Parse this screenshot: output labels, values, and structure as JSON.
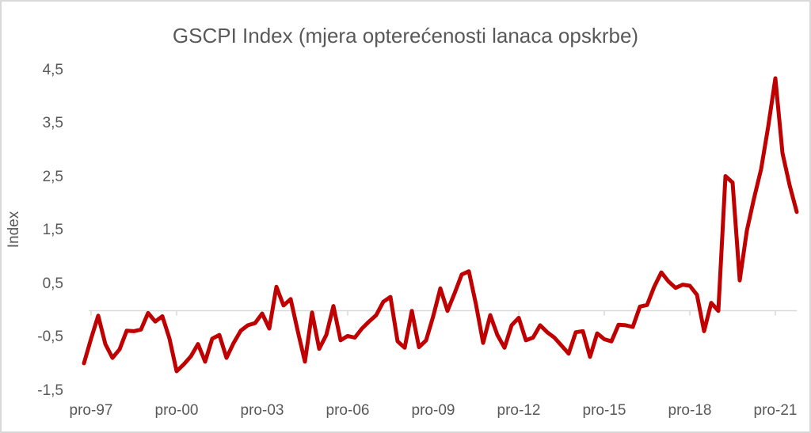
{
  "title": "GSCPI Index (mjera opterećenosti lanaca opskrbe)",
  "y_axis": {
    "title": "Index",
    "tick_labels": [
      "4,5",
      "3,5",
      "2,5",
      "1,5",
      "0,5",
      "-0,5",
      "-1,5"
    ],
    "tick_values": [
      4.5,
      3.5,
      2.5,
      1.5,
      0.5,
      -0.5,
      -1.5
    ],
    "min": -1.5,
    "max": 4.5
  },
  "x_axis": {
    "tick_labels": [
      "pro-97",
      "pro-00",
      "pro-03",
      "pro-06",
      "pro-09",
      "pro-12",
      "pro-15",
      "pro-18",
      "pro-21"
    ],
    "tick_indices": [
      1,
      13,
      25,
      37,
      49,
      61,
      73,
      85,
      97
    ]
  },
  "chart_data": {
    "type": "line",
    "title": "GSCPI Index (mjera opterećenosti lanaca opskrbe)",
    "ylabel": "Index",
    "series_name": "GSCPI Index",
    "frequency": "quarterly",
    "x_start": "1997-Q3",
    "x_end": "2022-Q3",
    "x_tick_labels": [
      "pro-97",
      "pro-00",
      "pro-03",
      "pro-06",
      "pro-09",
      "pro-12",
      "pro-15",
      "pro-18",
      "pro-21"
    ],
    "x_tick_indices": [
      1,
      13,
      25,
      37,
      49,
      61,
      73,
      85,
      97
    ],
    "values": [
      -0.98,
      -0.52,
      -0.09,
      -0.62,
      -0.88,
      -0.72,
      -0.37,
      -0.38,
      -0.35,
      -0.04,
      -0.2,
      -0.1,
      -0.52,
      -1.13,
      -1.0,
      -0.85,
      -0.62,
      -0.95,
      -0.52,
      -0.45,
      -0.88,
      -0.6,
      -0.37,
      -0.27,
      -0.23,
      -0.05,
      -0.33,
      0.45,
      0.1,
      0.22,
      -0.38,
      -0.95,
      -0.03,
      -0.71,
      -0.45,
      0.09,
      -0.55,
      -0.47,
      -0.5,
      -0.33,
      -0.2,
      -0.08,
      0.17,
      0.26,
      -0.57,
      -0.69,
      0.0,
      -0.68,
      -0.55,
      -0.1,
      0.42,
      0.0,
      0.33,
      0.68,
      0.74,
      0.12,
      -0.6,
      -0.08,
      -0.45,
      -0.69,
      -0.27,
      -0.13,
      -0.55,
      -0.5,
      -0.27,
      -0.4,
      -0.5,
      -0.65,
      -0.8,
      -0.4,
      -0.38,
      -0.86,
      -0.42,
      -0.53,
      -0.57,
      -0.26,
      -0.27,
      -0.3,
      0.08,
      0.11,
      0.45,
      0.72,
      0.55,
      0.43,
      0.49,
      0.47,
      0.3,
      -0.38,
      0.15,
      0.0,
      2.52,
      2.4,
      0.57,
      1.5,
      2.1,
      2.65,
      3.45,
      4.35,
      2.95,
      2.35,
      1.85
    ],
    "ylim": [
      -1.5,
      4.5
    ],
    "grid": "zero-axis-only",
    "legend": "none"
  },
  "colors": {
    "line": "#C00000",
    "text": "#595959",
    "axis": "#D9D9D9",
    "background": "#FFFFFF"
  }
}
